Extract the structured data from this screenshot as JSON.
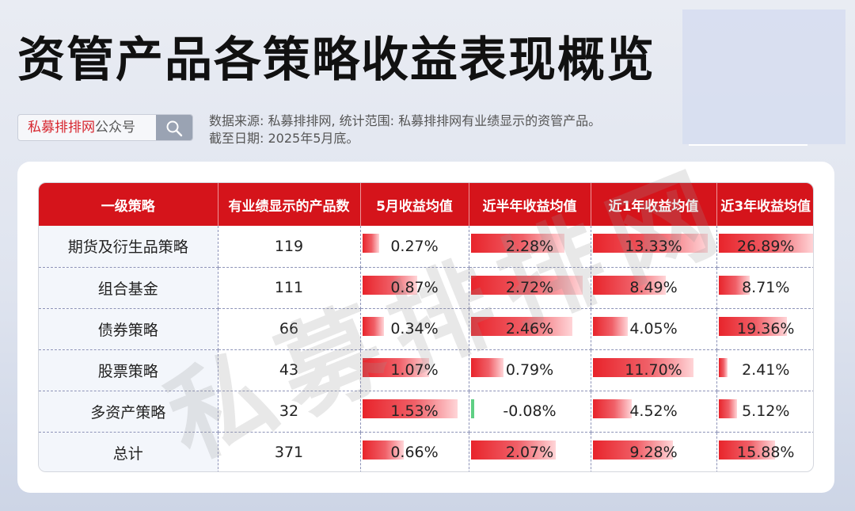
{
  "title": "资管产品各策略收益表现概览",
  "search": {
    "brand": "私募排排网",
    "suffix": "公众号",
    "icon": "search-icon"
  },
  "source": {
    "line1": "数据来源: 私募排排网, 统计范围: 私募排排网有业绩显示的资管产品。",
    "line2": "截至日期: 2025年5月底。"
  },
  "watermark": "私募排排网",
  "colors": {
    "header_red": "#d5141b",
    "bar_red": "#e8242b",
    "negative_green": "#5fcf84"
  },
  "table": {
    "headers": [
      "一级策略",
      "有业绩显示的产品数",
      "5月收益均值",
      "近半年收益均值",
      "近1年收益均值",
      "近3年收益均值"
    ],
    "rows": [
      {
        "strategy": "期货及衍生品策略",
        "count": "119",
        "may": "0.27%",
        "half": "2.28%",
        "one": "13.33%",
        "three": "26.89%",
        "may_v": 0.27,
        "half_v": 2.28,
        "one_v": 13.33,
        "three_v": 26.89
      },
      {
        "strategy": "组合基金",
        "count": "111",
        "may": "0.87%",
        "half": "2.72%",
        "one": "8.49%",
        "three": "8.71%",
        "may_v": 0.87,
        "half_v": 2.72,
        "one_v": 8.49,
        "three_v": 8.71
      },
      {
        "strategy": "债券策略",
        "count": "66",
        "may": "0.34%",
        "half": "2.46%",
        "one": "4.05%",
        "three": "19.36%",
        "may_v": 0.34,
        "half_v": 2.46,
        "one_v": 4.05,
        "three_v": 19.36
      },
      {
        "strategy": "股票策略",
        "count": "43",
        "may": "1.07%",
        "half": "0.79%",
        "one": "11.70%",
        "three": "2.41%",
        "may_v": 1.07,
        "half_v": 0.79,
        "one_v": 11.7,
        "three_v": 2.41
      },
      {
        "strategy": "多资产策略",
        "count": "32",
        "may": "1.53%",
        "half": "-0.08%",
        "one": "4.52%",
        "three": "5.12%",
        "may_v": 1.53,
        "half_v": -0.08,
        "one_v": 4.52,
        "three_v": 5.12
      },
      {
        "strategy": "总计",
        "count": "371",
        "may": "0.66%",
        "half": "2.07%",
        "one": "9.28%",
        "three": "15.88%",
        "may_v": 0.66,
        "half_v": 2.07,
        "one_v": 9.28,
        "three_v": 15.88
      }
    ]
  }
}
